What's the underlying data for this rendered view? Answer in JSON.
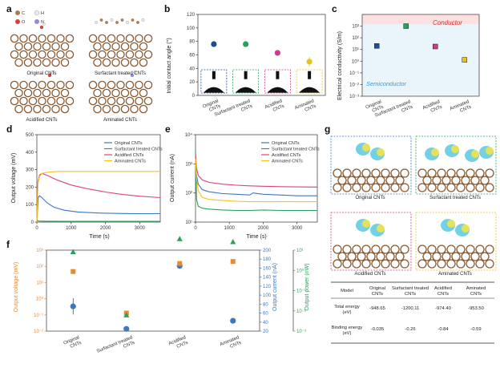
{
  "panels": {
    "a": {
      "label": "a",
      "atom_legend": [
        "C",
        "H",
        "O",
        "N"
      ],
      "atom_colors": {
        "C": "#b07a4a",
        "H": "#e8e8e8",
        "O": "#d94040",
        "N": "#8d8dd8"
      },
      "captions": [
        "Original CNTs",
        "Surfactant treated CNTs",
        "Acidified CNTs",
        "Aminated CNTs"
      ]
    },
    "b": {
      "label": "b"
    },
    "c": {
      "label": "c",
      "conductor_label": "Conductor",
      "semiconductor_label": "Semiconductor"
    },
    "d": {
      "label": "d"
    },
    "e": {
      "label": "e"
    },
    "f": {
      "label": "f"
    },
    "g": {
      "label": "g",
      "captions": [
        "Original CNTs",
        "Surfactant treated CNTs",
        "Acidified CNTs",
        "Aminated CNTs"
      ],
      "table": {
        "header": [
          "Model",
          "Original CNTs",
          "Surfactant treated CNTs",
          "Acidified CNTs",
          "Aminated CNTs"
        ],
        "rows": [
          {
            "label": "Total energy (eV)",
            "values": [
              "-948.65",
              "-1200.11",
              "-974.40",
              "-953.50"
            ]
          },
          {
            "label": "Binding energy (eV)",
            "values": [
              "-0.035",
              "-0.26",
              "-0.84",
              "-0.59"
            ]
          }
        ]
      }
    }
  },
  "chart_data": [
    {
      "panel": "b",
      "type": "scatter",
      "ylabel": "Initial contact angle (°)",
      "ylim": [
        0,
        120
      ],
      "yticks": [
        0,
        20,
        40,
        60,
        80,
        100,
        120
      ],
      "categories": [
        "Original CNTs",
        "Surfactant treated CNTs",
        "Acidified CNTs",
        "Aminated CNTs"
      ],
      "values": [
        76,
        76,
        63,
        50
      ],
      "errors": [
        0,
        0,
        2,
        7
      ],
      "colors": [
        "#1f4e96",
        "#2aa35a",
        "#d6368c",
        "#e6c229"
      ]
    },
    {
      "panel": "c",
      "type": "scatter",
      "scale": "log",
      "ylabel": "Electrical conductivity (S/m)",
      "ylim": [
        0.001,
        10000
      ],
      "ytick_labels": [
        "10⁻³",
        "10⁻²",
        "10⁻¹",
        "10⁰",
        "10¹",
        "10²",
        "10³"
      ],
      "categories": [
        "Original CNTs",
        "Surfactant treated CNTs",
        "Acidified CNTs",
        "Aminated CNTs"
      ],
      "values": [
        20,
        1000,
        18,
        1.3
      ],
      "colors": [
        "#1f4e96",
        "#2aa35a",
        "#d6368c",
        "#e6c229"
      ]
    },
    {
      "panel": "d",
      "type": "line",
      "xlabel": "Time (s)",
      "ylabel": "Output voltage (mV)",
      "xlim": [
        0,
        3600
      ],
      "ylim": [
        0,
        500
      ],
      "xticks": [
        0,
        1000,
        2000,
        3000
      ],
      "yticks": [
        0,
        100,
        200,
        300,
        400,
        500
      ],
      "series": [
        {
          "name": "Original CNTs",
          "color": "#3a78c2",
          "x": [
            0,
            40,
            80,
            150,
            300,
            500,
            800,
            1200,
            1800,
            2500,
            3000,
            3600
          ],
          "y": [
            0,
            140,
            150,
            140,
            110,
            85,
            68,
            58,
            52,
            49,
            48,
            48
          ]
        },
        {
          "name": "Surfactant treated CNTs",
          "color": "#2aa35a",
          "x": [
            0,
            20,
            60,
            300,
            1000,
            2000,
            3600
          ],
          "y": [
            0,
            8,
            6,
            5,
            4,
            4,
            4
          ]
        },
        {
          "name": "Acidified CNTs",
          "color": "#e0407a",
          "x": [
            0,
            30,
            80,
            150,
            300,
            600,
            1000,
            1500,
            2000,
            2500,
            3000,
            3600
          ],
          "y": [
            0,
            230,
            270,
            278,
            268,
            240,
            212,
            190,
            172,
            158,
            148,
            140
          ]
        },
        {
          "name": "Aminated CNTs",
          "color": "#f0c419",
          "x": [
            0,
            30,
            80,
            150,
            300,
            600,
            1000,
            2000,
            3000,
            3600
          ],
          "y": [
            0,
            220,
            262,
            278,
            285,
            290,
            290,
            290,
            290,
            290
          ]
        }
      ]
    },
    {
      "panel": "e",
      "type": "line",
      "scale": "log",
      "xlabel": "Time (s)",
      "ylabel": "Output current (nA)",
      "xlim": [
        0,
        3600
      ],
      "ylim": [
        10,
        10000
      ],
      "xticks": [
        0,
        1000,
        2000,
        3000
      ],
      "ytick_labels": [
        "10¹",
        "10²",
        "10³",
        "10⁴"
      ],
      "series": [
        {
          "name": "Original CNTs",
          "color": "#3a78c2",
          "x": [
            0,
            30,
            80,
            200,
            400,
            800,
            1200,
            1600,
            1700,
            2000,
            2500,
            3000,
            3600
          ],
          "y": [
            900,
            400,
            200,
            130,
            110,
            95,
            90,
            85,
            100,
            90,
            85,
            80,
            80
          ]
        },
        {
          "name": "Surfactant treated CNTs",
          "color": "#2aa35a",
          "x": [
            0,
            30,
            80,
            200,
            400,
            800,
            1200,
            1600,
            2000,
            2500,
            3000,
            3600
          ],
          "y": [
            3000,
            60,
            35,
            30,
            28,
            26,
            25,
            25,
            26,
            25,
            25,
            25
          ]
        },
        {
          "name": "Acidified CNTs",
          "color": "#e0407a",
          "x": [
            0,
            30,
            80,
            200,
            400,
            800,
            1200,
            1600,
            2000,
            2500,
            3000,
            3600
          ],
          "y": [
            2000,
            700,
            400,
            280,
            230,
            200,
            185,
            175,
            170,
            165,
            162,
            160
          ]
        },
        {
          "name": "Aminated CNTs",
          "color": "#f0c419",
          "x": [
            0,
            30,
            80,
            200,
            400,
            800,
            1200,
            1600,
            2000,
            2500,
            3000,
            3600
          ],
          "y": [
            1500,
            300,
            120,
            70,
            60,
            55,
            52,
            50,
            50,
            50,
            50,
            50
          ]
        }
      ]
    },
    {
      "panel": "f",
      "type": "scatter",
      "ylabel": "Output voltage (mV)",
      "ylabel_right": "Output current (nA)",
      "ylabel_right2": "Output power (nW)",
      "categories": [
        "Original CNTs",
        "Surfactant treated CNTs",
        "Acidified CNTs",
        "Aminated CNTs"
      ],
      "left_ytick_labels": [
        "10⁻²",
        "10⁻¹",
        "10⁰",
        "10¹",
        "10²",
        "10³"
      ],
      "right_yticks": [
        20,
        40,
        60,
        80,
        100,
        120,
        140,
        160,
        180,
        200
      ],
      "right2_ytick_labels": [
        "10⁻³",
        "10⁻²",
        "10⁻¹",
        "10⁰",
        "10¹"
      ],
      "series": [
        {
          "name": "Output voltage",
          "color": "#e88a2e",
          "log": true,
          "values": [
            48,
            0.13,
            150,
            200
          ]
        },
        {
          "name": "Output current",
          "color": "#3a78c2",
          "log": false,
          "ylim": [
            20,
            200
          ],
          "values": [
            75,
            25,
            165,
            43
          ],
          "errors": [
            18,
            0,
            0,
            0
          ]
        },
        {
          "name": "Output power",
          "color": "#2aa35a",
          "log": true,
          "ylim": [
            0.001,
            100
          ],
          "values": [
            8,
            0.006,
            35,
            25
          ]
        }
      ]
    }
  ]
}
